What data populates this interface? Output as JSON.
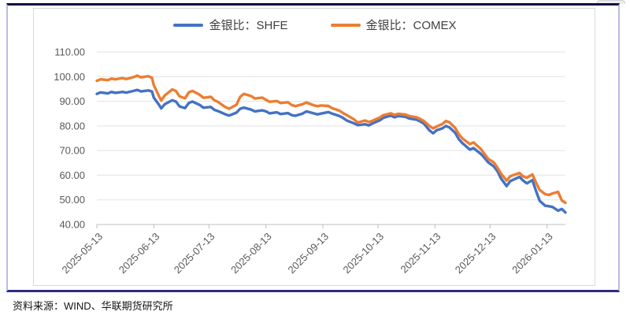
{
  "footer": {
    "source": "资料来源：WIND、华联期货研究所"
  },
  "chart_data": {
    "type": "line",
    "title": "",
    "xlabel": "",
    "ylabel": "",
    "ylim": [
      40,
      110
    ],
    "grid": "horizontal",
    "legend_position": "top",
    "y_ticks": [
      110,
      100,
      90,
      80,
      70,
      60,
      50,
      40
    ],
    "x_ticks": [
      "2025-05-13",
      "2025-06-13",
      "2025-07-13",
      "2025-08-13",
      "2025-09-13",
      "2025-10-13",
      "2025-11-13",
      "2025-12-13",
      "2026-01-13"
    ],
    "x": [
      "2025-05-13",
      "2025-05-15",
      "2025-05-19",
      "2025-05-21",
      "2025-05-23",
      "2025-05-27",
      "2025-05-29",
      "2025-06-02",
      "2025-06-04",
      "2025-06-06",
      "2025-06-10",
      "2025-06-12",
      "2025-06-13",
      "2025-06-16",
      "2025-06-17",
      "2025-06-19",
      "2025-06-23",
      "2025-06-25",
      "2025-06-27",
      "2025-06-30",
      "2025-07-02",
      "2025-07-04",
      "2025-07-08",
      "2025-07-10",
      "2025-07-14",
      "2025-07-16",
      "2025-07-18",
      "2025-07-22",
      "2025-07-24",
      "2025-07-28",
      "2025-07-30",
      "2025-08-01",
      "2025-08-05",
      "2025-08-07",
      "2025-08-11",
      "2025-08-13",
      "2025-08-15",
      "2025-08-19",
      "2025-08-21",
      "2025-08-25",
      "2025-08-27",
      "2025-08-29",
      "2025-09-02",
      "2025-09-04",
      "2025-09-08",
      "2025-09-10",
      "2025-09-12",
      "2025-09-16",
      "2025-09-18",
      "2025-09-22",
      "2025-09-24",
      "2025-09-26",
      "2025-09-30",
      "2025-10-02",
      "2025-10-06",
      "2025-10-08",
      "2025-10-10",
      "2025-10-14",
      "2025-10-16",
      "2025-10-20",
      "2025-10-22",
      "2025-10-24",
      "2025-10-28",
      "2025-10-30",
      "2025-11-03",
      "2025-11-05",
      "2025-11-07",
      "2025-11-10",
      "2025-11-12",
      "2025-11-14",
      "2025-11-17",
      "2025-11-19",
      "2025-11-21",
      "2025-11-24",
      "2025-11-26",
      "2025-11-28",
      "2025-12-02",
      "2025-12-04",
      "2025-12-08",
      "2025-12-10",
      "2025-12-12",
      "2025-12-15",
      "2025-12-17",
      "2025-12-19",
      "2025-12-22",
      "2025-12-24",
      "2025-12-29",
      "2025-12-31",
      "2026-01-02",
      "2026-01-05",
      "2026-01-07",
      "2026-01-09",
      "2026-01-12",
      "2026-01-14",
      "2026-01-16",
      "2026-01-19",
      "2026-01-21",
      "2026-01-23"
    ],
    "series": [
      {
        "name": "金银比：SHFE",
        "color": "#4472c4",
        "values": [
          93.0,
          93.6,
          93.2,
          93.8,
          93.4,
          93.8,
          93.5,
          94.2,
          94.6,
          94.0,
          94.4,
          94.0,
          91.5,
          88.4,
          87.1,
          88.8,
          90.4,
          89.9,
          87.9,
          87.2,
          89.3,
          89.9,
          88.5,
          87.4,
          87.7,
          86.5,
          86.0,
          84.7,
          84.2,
          85.4,
          87.0,
          87.4,
          86.6,
          85.9,
          86.3,
          85.9,
          85.1,
          85.5,
          84.8,
          85.2,
          84.4,
          84.1,
          85.0,
          85.9,
          85.1,
          84.7,
          85.0,
          85.6,
          85.0,
          84.0,
          83.2,
          82.2,
          81.0,
          80.3,
          80.7,
          80.2,
          81.0,
          82.3,
          83.3,
          84.2,
          83.5,
          84.0,
          83.7,
          83.0,
          82.5,
          81.8,
          80.9,
          78.2,
          77.0,
          78.3,
          79.0,
          80.0,
          79.3,
          77.2,
          74.6,
          73.0,
          70.4,
          71.0,
          68.6,
          67.0,
          65.2,
          63.6,
          61.6,
          58.6,
          55.6,
          57.6,
          59.3,
          57.8,
          56.7,
          58.0,
          53.6,
          49.6,
          47.6,
          47.4,
          47.1,
          45.6,
          46.3,
          44.9
        ]
      },
      {
        "name": "金银比：COMEX",
        "color": "#ed7d31",
        "values": [
          98.3,
          98.9,
          98.6,
          99.2,
          98.9,
          99.4,
          99.0,
          99.8,
          100.4,
          99.7,
          100.2,
          99.5,
          96.5,
          91.8,
          90.3,
          92.4,
          94.8,
          94.2,
          92.0,
          91.2,
          93.6,
          94.2,
          92.6,
          91.4,
          91.8,
          90.4,
          89.7,
          87.6,
          87.0,
          88.6,
          91.8,
          93.0,
          92.1,
          91.1,
          91.5,
          90.6,
          89.8,
          90.1,
          89.3,
          89.6,
          88.5,
          88.0,
          88.8,
          89.5,
          88.4,
          88.0,
          88.3,
          88.1,
          87.2,
          86.2,
          85.2,
          84.4,
          82.6,
          81.4,
          82.2,
          81.6,
          82.1,
          83.4,
          84.4,
          85.1,
          84.5,
          84.9,
          84.6,
          84.0,
          83.5,
          82.8,
          82.0,
          80.0,
          79.0,
          79.8,
          80.8,
          82.0,
          81.4,
          79.2,
          76.6,
          74.9,
          72.6,
          73.3,
          70.6,
          68.6,
          66.6,
          65.2,
          63.1,
          60.6,
          57.8,
          59.6,
          60.9,
          59.5,
          59.0,
          60.3,
          57.0,
          54.0,
          52.3,
          52.0,
          52.6,
          53.2,
          49.8,
          48.8
        ]
      }
    ]
  }
}
